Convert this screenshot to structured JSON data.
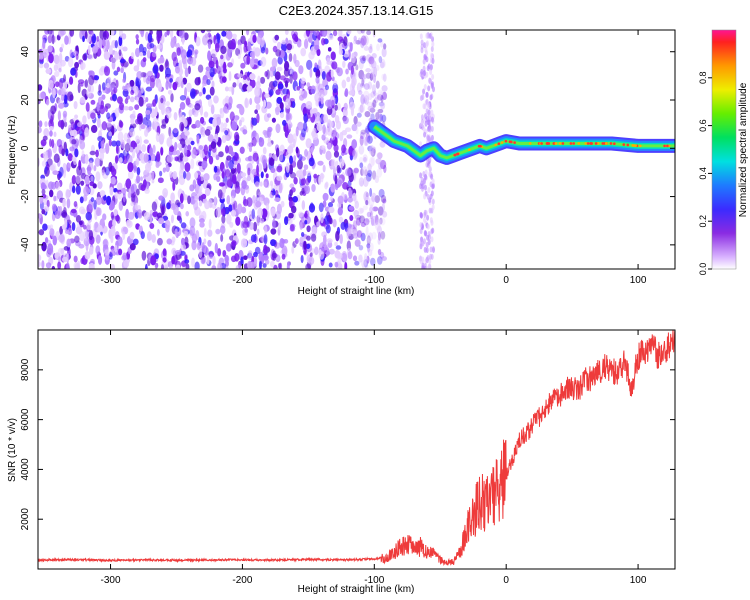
{
  "title": "C2E3.2024.357.13.14.G15",
  "colors": {
    "snr_line": "#ee3b3b",
    "signal_core": "#66ee44",
    "signal_edge": "#2288ff",
    "signal_peak": "#ff3333",
    "noise": "#7a1cf0"
  },
  "chart_data": [
    {
      "type": "heatmap",
      "panel": "spectrogram",
      "xlabel": "Height of straight line (km)",
      "ylabel": "Frequency (Hz)",
      "colorbar_label": "Normalized spectral amplitude",
      "colormap": "rainbow",
      "xlim": [
        -355,
        128
      ],
      "ylim": [
        -50,
        49
      ],
      "clim": [
        0,
        1
      ],
      "x_ticks": [
        -300,
        -200,
        -100,
        0,
        100
      ],
      "y_ticks": [
        -40,
        -20,
        0,
        20,
        40
      ],
      "colorbar_ticks": [
        0.0,
        0.2,
        0.4,
        0.6,
        0.8
      ],
      "x_tick_labels": [
        "-300",
        "-200",
        "-100",
        "0",
        "100"
      ],
      "y_tick_labels": [
        "-40",
        "-20",
        "0",
        "20",
        "40"
      ],
      "colorbar_tick_labels": [
        "0.0",
        "0.2",
        "0.4",
        "0.6",
        "0.8"
      ],
      "noise_region_x": [
        -355,
        -100
      ],
      "noise_strip_x": [
        -65,
        -55
      ],
      "signal_trace": {
        "x": [
          -100,
          -95,
          -90,
          -85,
          -80,
          -75,
          -70,
          -65,
          -60,
          -55,
          -50,
          -45,
          -40,
          -35,
          -30,
          -25,
          -20,
          -15,
          -10,
          -5,
          0,
          10,
          20,
          40,
          60,
          80,
          100,
          128
        ],
        "frequency": [
          9,
          7,
          5,
          3,
          2,
          1,
          -1,
          -3,
          -1,
          0,
          -3,
          -4,
          -3,
          -2,
          -1,
          0,
          1,
          0,
          1,
          2,
          3,
          2,
          2,
          2,
          2,
          2,
          1,
          1
        ],
        "amplitude": [
          0.35,
          0.45,
          0.5,
          0.5,
          0.45,
          0.45,
          0.4,
          0.4,
          0.45,
          0.5,
          0.55,
          0.55,
          0.6,
          0.65,
          0.65,
          0.6,
          0.6,
          0.65,
          0.7,
          0.7,
          0.75,
          0.8,
          0.85,
          0.85,
          0.85,
          0.85,
          0.85,
          0.85
        ]
      }
    },
    {
      "type": "line",
      "panel": "snr",
      "xlabel": "Height of straight line (km)",
      "ylabel": "SNR (10 * v/v)",
      "xlim": [
        -355,
        128
      ],
      "ylim": [
        0,
        9600
      ],
      "x_ticks": [
        -300,
        -200,
        -100,
        0,
        100
      ],
      "y_ticks": [
        2000,
        4000,
        6000,
        8000
      ],
      "x_tick_labels": [
        "-300",
        "-200",
        "-100",
        "0",
        "100"
      ],
      "y_tick_labels": [
        "2000",
        "4000",
        "6000",
        "8000"
      ],
      "series": [
        {
          "x": [
            -355,
            -330,
            -300,
            -270,
            -240,
            -210,
            -180,
            -150,
            -120,
            -100,
            -90,
            -85,
            -80,
            -75,
            -70,
            -65,
            -60,
            -55,
            -50,
            -45,
            -40,
            -35,
            -30,
            -25,
            -20,
            -15,
            -10,
            -5,
            0,
            5,
            10,
            15,
            20,
            25,
            30,
            35,
            40,
            45,
            50,
            55,
            60,
            65,
            70,
            75,
            80,
            85,
            90,
            95,
            100,
            105,
            110,
            115,
            120,
            128
          ],
          "y": [
            350,
            380,
            350,
            360,
            350,
            370,
            360,
            380,
            370,
            400,
            450,
            700,
            900,
            1000,
            800,
            900,
            700,
            600,
            350,
            250,
            300,
            700,
            1500,
            2200,
            2600,
            2700,
            3000,
            3300,
            3800,
            4400,
            5200,
            5400,
            5800,
            6100,
            6500,
            6800,
            6900,
            7200,
            7300,
            7200,
            7700,
            7600,
            7900,
            8100,
            8000,
            7800,
            8300,
            7300,
            8500,
            8800,
            9000,
            8600,
            8700,
            9400
          ]
        }
      ]
    }
  ]
}
